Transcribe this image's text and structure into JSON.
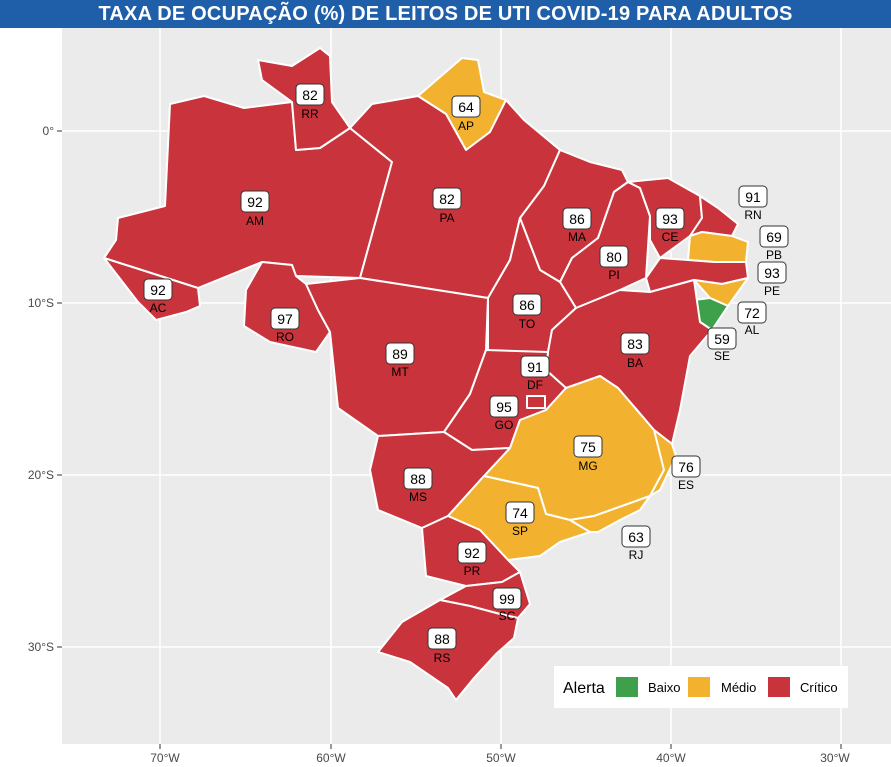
{
  "title": "TAXA DE OCUPAÇÃO (%) DE LEITOS DE UTI COVID-19 PARA ADULTOS",
  "axes": {
    "x_ticks": [
      "70°W",
      "60°W",
      "50°W",
      "40°W",
      "30°W"
    ],
    "y_ticks": [
      "0°",
      "10°S",
      "20°S",
      "30°S"
    ]
  },
  "colors": {
    "panel_background": "#ebebeb",
    "grid": "#ffffff",
    "baixo": "#3fa04b",
    "medio": "#f2b230",
    "critico": "#c9333b"
  },
  "legend": {
    "title": "Alerta",
    "items": [
      {
        "key": "baixo",
        "label": "Baixo"
      },
      {
        "key": "medio",
        "label": "Médio"
      },
      {
        "key": "critico",
        "label": "Crítico"
      }
    ]
  },
  "states": [
    {
      "sigla": "RR",
      "value": "82",
      "alert": "critico"
    },
    {
      "sigla": "AP",
      "value": "64",
      "alert": "medio"
    },
    {
      "sigla": "AM",
      "value": "92",
      "alert": "critico"
    },
    {
      "sigla": "PA",
      "value": "82",
      "alert": "critico"
    },
    {
      "sigla": "MA",
      "value": "86",
      "alert": "critico"
    },
    {
      "sigla": "CE",
      "value": "93",
      "alert": "critico"
    },
    {
      "sigla": "RN",
      "value": "91",
      "alert": "critico"
    },
    {
      "sigla": "PB",
      "value": "69",
      "alert": "medio"
    },
    {
      "sigla": "PE",
      "value": "93",
      "alert": "critico"
    },
    {
      "sigla": "AL",
      "value": "72",
      "alert": "medio"
    },
    {
      "sigla": "SE",
      "value": "59",
      "alert": "baixo"
    },
    {
      "sigla": "PI",
      "value": "80",
      "alert": "critico"
    },
    {
      "sigla": "AC",
      "value": "92",
      "alert": "critico"
    },
    {
      "sigla": "RO",
      "value": "97",
      "alert": "critico"
    },
    {
      "sigla": "TO",
      "value": "86",
      "alert": "critico"
    },
    {
      "sigla": "BA",
      "value": "83",
      "alert": "critico"
    },
    {
      "sigla": "MT",
      "value": "89",
      "alert": "critico"
    },
    {
      "sigla": "DF",
      "value": "91",
      "alert": "critico"
    },
    {
      "sigla": "GO",
      "value": "95",
      "alert": "critico"
    },
    {
      "sigla": "MG",
      "value": "75",
      "alert": "medio"
    },
    {
      "sigla": "ES",
      "value": "76",
      "alert": "medio"
    },
    {
      "sigla": "MS",
      "value": "88",
      "alert": "critico"
    },
    {
      "sigla": "SP",
      "value": "74",
      "alert": "medio"
    },
    {
      "sigla": "RJ",
      "value": "63",
      "alert": "medio"
    },
    {
      "sigla": "PR",
      "value": "92",
      "alert": "critico"
    },
    {
      "sigla": "SC",
      "value": "99",
      "alert": "critico"
    },
    {
      "sigla": "RS",
      "value": "88",
      "alert": "critico"
    }
  ]
}
